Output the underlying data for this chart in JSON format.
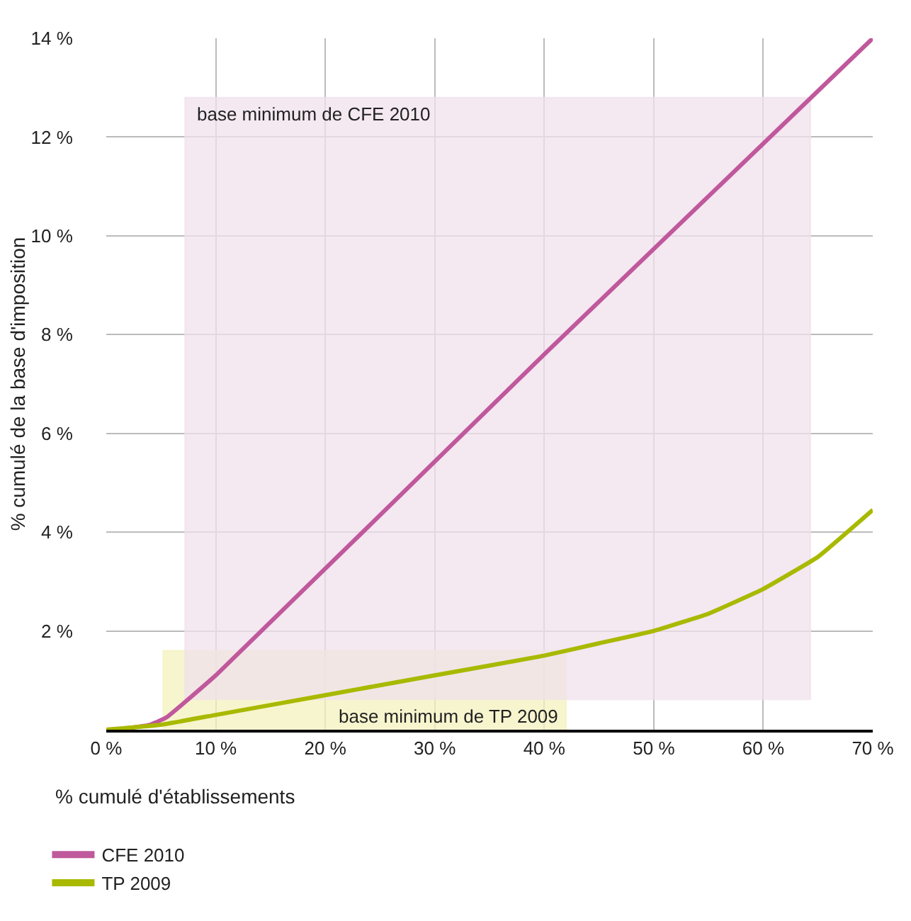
{
  "chart_data": {
    "type": "line",
    "xlabel": "% cumulé d'établissements",
    "ylabel": "% cumulé de la base d'imposition",
    "xlim": [
      0,
      70
    ],
    "ylim": [
      0,
      14
    ],
    "xticks": [
      {
        "value": 0,
        "label": "0 %"
      },
      {
        "value": 10,
        "label": "10 %"
      },
      {
        "value": 20,
        "label": "20 %"
      },
      {
        "value": 30,
        "label": "30 %"
      },
      {
        "value": 40,
        "label": "40 %"
      },
      {
        "value": 50,
        "label": "50 %"
      },
      {
        "value": 60,
        "label": "60 %"
      },
      {
        "value": 70,
        "label": "70 %"
      }
    ],
    "yticks": [
      {
        "value": 2,
        "label": "2 %"
      },
      {
        "value": 4,
        "label": "4 %"
      },
      {
        "value": 6,
        "label": "6 %"
      },
      {
        "value": 8,
        "label": "8 %"
      },
      {
        "value": 10,
        "label": "10 %"
      },
      {
        "value": 12,
        "label": "12 %"
      },
      {
        "value": 14,
        "label": "14 %"
      }
    ],
    "grid": true,
    "legend": "bottom",
    "series": [
      {
        "type": "area",
        "name": "base minimum de TP 2009",
        "color": "#f4f2bd",
        "x": [
          5.2,
          5.2,
          42,
          42
        ],
        "values": [
          0,
          1.6,
          1.6,
          0
        ]
      },
      {
        "type": "area",
        "name": "base minimum de CFE 2010",
        "color": "#f0e0ec",
        "x": [
          7.2,
          7.2,
          64.3,
          64.3
        ],
        "values": [
          0.6,
          12.8,
          12.8,
          0.6
        ]
      },
      {
        "name": "CFE 2010",
        "color": "#c0589c",
        "x": [
          0,
          2,
          4,
          5.5,
          10,
          40,
          70
        ],
        "values": [
          0,
          0.03,
          0.1,
          0.25,
          1.1,
          7.6,
          14
        ]
      },
      {
        "name": "TP 2009",
        "color": "#a9b900",
        "x": [
          0,
          5,
          10,
          20,
          30,
          40,
          45,
          50,
          55,
          60,
          65,
          70
        ],
        "values": [
          0,
          0.1,
          0.3,
          0.7,
          1.1,
          1.5,
          1.75,
          2.0,
          2.35,
          2.85,
          3.5,
          4.45
        ]
      }
    ]
  }
}
